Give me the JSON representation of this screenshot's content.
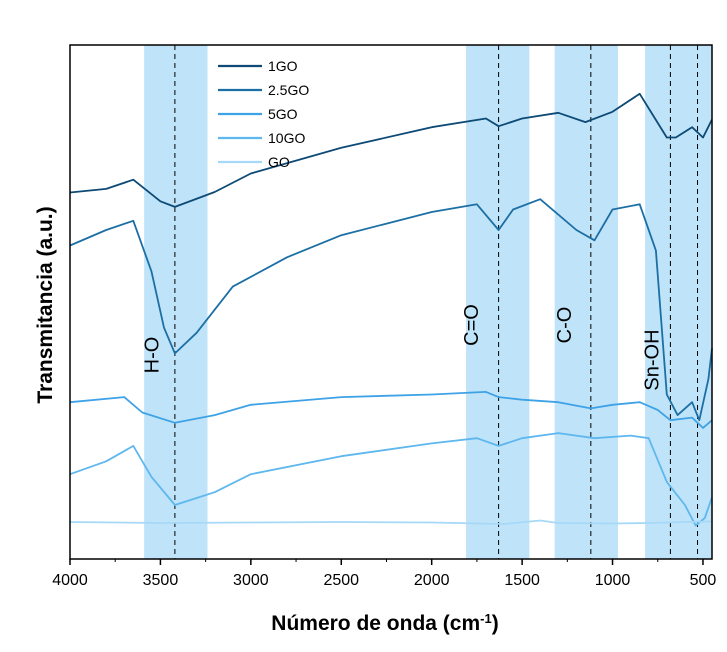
{
  "chart_data": {
    "type": "line",
    "xlabel": "Número de onda (cm",
    "xlabel_sup": "-1",
    "xlabel_end": ")",
    "ylabel": "Transmitancia (a.u.)",
    "xlim": [
      4000,
      450
    ],
    "x_reversed": true,
    "grid": false,
    "x_ticks": [
      4000,
      3500,
      3000,
      2500,
      2000,
      1500,
      1000,
      500
    ],
    "x_tick_labels": [
      "4000",
      "3500",
      "3000",
      "2500",
      "2000",
      "1500",
      "1000",
      "500"
    ],
    "legend_position": "top-left",
    "legend": [
      "1GO",
      "2.5GO",
      "5GO",
      "10GO",
      "GO"
    ],
    "shaded_bands": [
      {
        "from": 3590,
        "to": 3240,
        "label": "H-O",
        "peak": 3420
      },
      {
        "from": 1810,
        "to": 1460,
        "label": "C=O",
        "peak": 1630
      },
      {
        "from": 1320,
        "to": 970,
        "label": "C-O",
        "peak": 1120
      },
      {
        "from": 820,
        "to": 450,
        "label": "Sn-OH",
        "peaks": [
          680,
          530
        ]
      }
    ],
    "series": [
      {
        "name": "1GO",
        "color": "#0d4a75",
        "points": [
          [
            4000,
            0.713
          ],
          [
            3800,
            0.72
          ],
          [
            3650,
            0.738
          ],
          [
            3500,
            0.696
          ],
          [
            3420,
            0.685
          ],
          [
            3200,
            0.714
          ],
          [
            3000,
            0.75
          ],
          [
            2500,
            0.8
          ],
          [
            2000,
            0.84
          ],
          [
            1700,
            0.857
          ],
          [
            1630,
            0.842
          ],
          [
            1500,
            0.857
          ],
          [
            1300,
            0.868
          ],
          [
            1150,
            0.85
          ],
          [
            1000,
            0.87
          ],
          [
            850,
            0.905
          ],
          [
            700,
            0.82
          ],
          [
            650,
            0.82
          ],
          [
            560,
            0.84
          ],
          [
            500,
            0.82
          ],
          [
            450,
            0.855
          ]
        ]
      },
      {
        "name": "2.5GO",
        "color": "#1c6fa5",
        "points": [
          [
            4000,
            0.61
          ],
          [
            3800,
            0.64
          ],
          [
            3650,
            0.658
          ],
          [
            3550,
            0.56
          ],
          [
            3480,
            0.45
          ],
          [
            3420,
            0.4
          ],
          [
            3300,
            0.44
          ],
          [
            3100,
            0.53
          ],
          [
            2800,
            0.587
          ],
          [
            2500,
            0.63
          ],
          [
            2000,
            0.675
          ],
          [
            1750,
            0.69
          ],
          [
            1630,
            0.64
          ],
          [
            1550,
            0.68
          ],
          [
            1400,
            0.7
          ],
          [
            1200,
            0.64
          ],
          [
            1100,
            0.62
          ],
          [
            1000,
            0.68
          ],
          [
            850,
            0.69
          ],
          [
            760,
            0.6
          ],
          [
            700,
            0.32
          ],
          [
            640,
            0.28
          ],
          [
            560,
            0.305
          ],
          [
            520,
            0.27
          ],
          [
            470,
            0.35
          ],
          [
            450,
            0.41
          ]
        ]
      },
      {
        "name": "5GO",
        "color": "#3ea2e6",
        "points": [
          [
            4000,
            0.305
          ],
          [
            3700,
            0.315
          ],
          [
            3600,
            0.285
          ],
          [
            3420,
            0.265
          ],
          [
            3200,
            0.28
          ],
          [
            3000,
            0.3
          ],
          [
            2500,
            0.315
          ],
          [
            2000,
            0.32
          ],
          [
            1700,
            0.325
          ],
          [
            1630,
            0.315
          ],
          [
            1500,
            0.31
          ],
          [
            1300,
            0.305
          ],
          [
            1120,
            0.293
          ],
          [
            1000,
            0.3
          ],
          [
            850,
            0.305
          ],
          [
            750,
            0.29
          ],
          [
            680,
            0.27
          ],
          [
            560,
            0.275
          ],
          [
            500,
            0.255
          ],
          [
            450,
            0.27
          ]
        ]
      },
      {
        "name": "10GO",
        "color": "#5eb7ee",
        "points": [
          [
            4000,
            0.165
          ],
          [
            3800,
            0.19
          ],
          [
            3650,
            0.22
          ],
          [
            3550,
            0.16
          ],
          [
            3420,
            0.105
          ],
          [
            3200,
            0.13
          ],
          [
            3000,
            0.165
          ],
          [
            2500,
            0.2
          ],
          [
            2000,
            0.225
          ],
          [
            1750,
            0.235
          ],
          [
            1630,
            0.22
          ],
          [
            1500,
            0.235
          ],
          [
            1300,
            0.245
          ],
          [
            1100,
            0.235
          ],
          [
            900,
            0.24
          ],
          [
            800,
            0.235
          ],
          [
            700,
            0.15
          ],
          [
            600,
            0.105
          ],
          [
            540,
            0.065
          ],
          [
            490,
            0.08
          ],
          [
            450,
            0.12
          ]
        ]
      },
      {
        "name": "GO",
        "color": "#a6d8f7",
        "points": [
          [
            4000,
            0.072
          ],
          [
            3500,
            0.07
          ],
          [
            3000,
            0.071
          ],
          [
            2500,
            0.072
          ],
          [
            2000,
            0.071
          ],
          [
            1600,
            0.068
          ],
          [
            1400,
            0.075
          ],
          [
            1300,
            0.07
          ],
          [
            1000,
            0.069
          ],
          [
            800,
            0.07
          ],
          [
            600,
            0.072
          ],
          [
            450,
            0.073
          ]
        ]
      }
    ]
  }
}
